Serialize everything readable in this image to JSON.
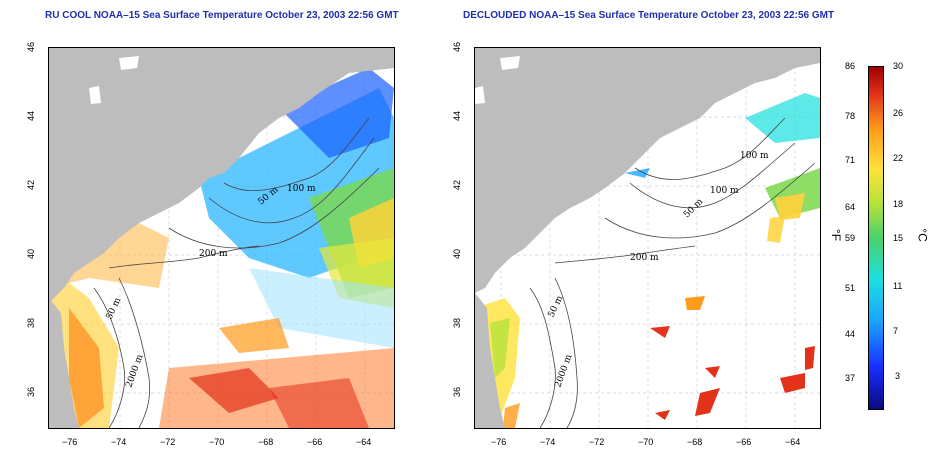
{
  "left_map": {
    "title": "RU COOL NOAA–15 Sea Surface Temperature October 23, 2003 22:56 GMT",
    "contour_labels": [
      "50 m",
      "100 m",
      "200 m",
      "50 m",
      "2000 m"
    ]
  },
  "right_map": {
    "title": "DECLOUDED NOAA–15 Sea Surface Temperature October 23, 2003 22:56 GMT",
    "contour_labels": [
      "100 m",
      "100 m",
      "50 m",
      "200 m",
      "50 m",
      "2000 m"
    ]
  },
  "axes": {
    "x_ticks": [
      "−76",
      "−74",
      "−72",
      "−70",
      "−68",
      "−66",
      "−64"
    ],
    "y_ticks": [
      "36",
      "38",
      "40",
      "42",
      "44",
      "46"
    ]
  },
  "colorbar": {
    "unit_f": "°F",
    "unit_c": "°C",
    "f_labels": [
      "86",
      "78",
      "71",
      "64",
      "59",
      "51",
      "44",
      "37"
    ],
    "c_labels": [
      "30",
      "26",
      "22",
      "18",
      "15",
      "11",
      "7",
      "3"
    ]
  },
  "colors": {
    "land": "#bdbdbd",
    "title": "#1f2fb0",
    "contour": "#444444"
  }
}
